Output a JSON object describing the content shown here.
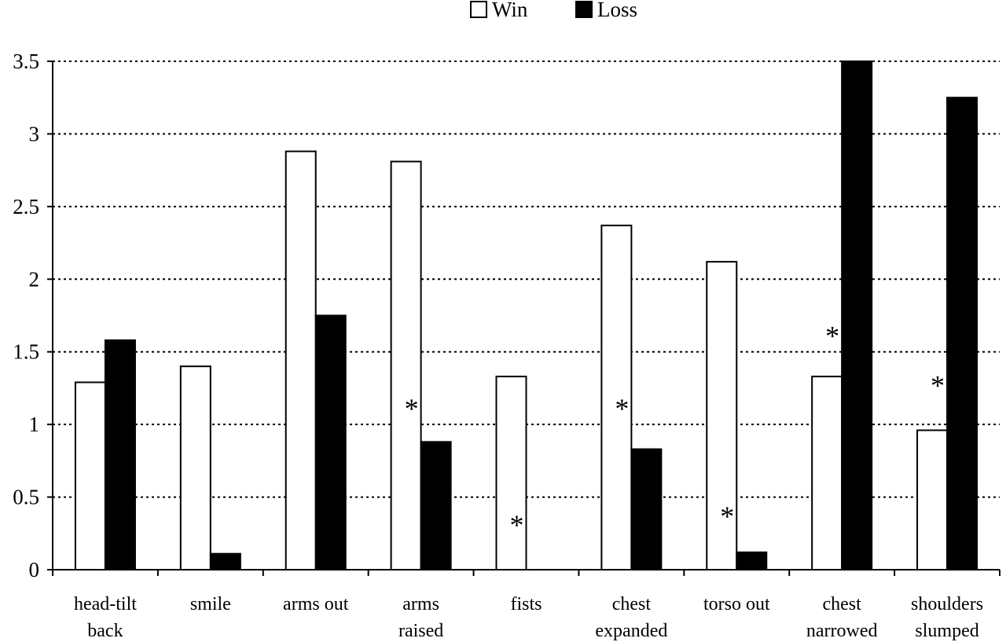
{
  "chart_data": {
    "type": "bar",
    "title": "",
    "xlabel": "",
    "ylabel": "",
    "ylim": [
      0,
      3.5
    ],
    "yticks": [
      "0",
      "0.5",
      "1",
      "1.5",
      "2",
      "2.5",
      "3",
      "3.5"
    ],
    "grid": "horizontal dotted",
    "legend_position": "top-center",
    "categories": [
      [
        "head-tilt",
        "back"
      ],
      [
        "smile"
      ],
      [
        "arms out"
      ],
      [
        "arms",
        "raised"
      ],
      [
        "fists"
      ],
      [
        "chest",
        "expanded"
      ],
      [
        "torso out"
      ],
      [
        "chest",
        "narrowed"
      ],
      [
        "shoulders",
        "slumped"
      ]
    ],
    "series": [
      {
        "name": "Win",
        "color": "#ffffff",
        "values": [
          1.29,
          1.4,
          2.88,
          2.81,
          1.33,
          2.37,
          2.12,
          1.33,
          0.96
        ]
      },
      {
        "name": "Loss",
        "color": "#000000",
        "values": [
          1.58,
          0.11,
          1.75,
          0.88,
          0.0,
          0.83,
          0.12,
          3.5,
          3.25
        ]
      }
    ],
    "annotations": [
      {
        "text": "*",
        "category": 3,
        "y": 1.12
      },
      {
        "text": "*",
        "category": 4,
        "y": 0.32
      },
      {
        "text": "*",
        "category": 5,
        "y": 1.12
      },
      {
        "text": "*",
        "category": 6,
        "y": 0.38
      },
      {
        "text": "*",
        "category": 7,
        "y": 1.62
      },
      {
        "text": "*",
        "category": 8,
        "y": 1.28
      }
    ]
  }
}
